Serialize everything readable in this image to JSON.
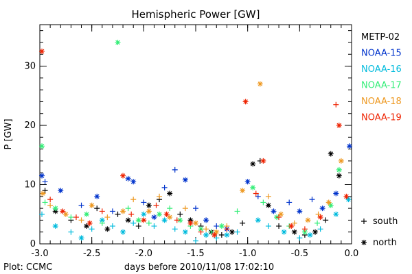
{
  "chart_data": {
    "type": "scatter",
    "title": "Hemispheric Power [GW]",
    "xlabel": "days before 2010/11/08 17:02:10",
    "ylabel": "P [GW]",
    "xlim": [
      -3.0,
      0.0
    ],
    "ylim": [
      0,
      37
    ],
    "x_ticks": [
      "-3.0",
      "-2.5",
      "-2.0",
      "-1.5",
      "-1.0",
      "-0.5",
      "0.0"
    ],
    "y_ticks": [
      "0",
      "10",
      "20",
      "30"
    ],
    "grid": false,
    "legend_position": "right",
    "footer": "Plot: CCMC",
    "marker_legend": [
      {
        "symbol": "+",
        "label": "south"
      },
      {
        "symbol": "*",
        "label": "north"
      }
    ],
    "series": [
      {
        "name": "METP-02",
        "color": "#000000",
        "points": [
          {
            "x": -2.95,
            "y": 9.0,
            "m": "+"
          },
          {
            "x": -2.85,
            "y": 5.5,
            "m": "*"
          },
          {
            "x": -2.7,
            "y": 4.0,
            "m": "+"
          },
          {
            "x": -2.55,
            "y": 3.0,
            "m": "*"
          },
          {
            "x": -2.45,
            "y": 6.0,
            "m": "+"
          },
          {
            "x": -2.35,
            "y": 2.5,
            "m": "*"
          },
          {
            "x": -2.25,
            "y": 5.0,
            "m": "+"
          },
          {
            "x": -2.15,
            "y": 4.0,
            "m": "*"
          },
          {
            "x": -2.05,
            "y": 3.0,
            "m": "+"
          },
          {
            "x": -1.95,
            "y": 6.5,
            "m": "*"
          },
          {
            "x": -1.85,
            "y": 7.5,
            "m": "+"
          },
          {
            "x": -1.75,
            "y": 8.5,
            "m": "*"
          },
          {
            "x": -1.65,
            "y": 5.0,
            "m": "+"
          },
          {
            "x": -1.55,
            "y": 4.0,
            "m": "*"
          },
          {
            "x": -1.45,
            "y": 3.0,
            "m": "+"
          },
          {
            "x": -1.35,
            "y": 2.0,
            "m": "*"
          },
          {
            "x": -1.25,
            "y": 1.5,
            "m": "+"
          },
          {
            "x": -1.15,
            "y": 2.0,
            "m": "*"
          },
          {
            "x": -1.05,
            "y": 3.5,
            "m": "+"
          },
          {
            "x": -0.95,
            "y": 13.5,
            "m": "*"
          },
          {
            "x": -0.88,
            "y": 14.0,
            "m": "+"
          },
          {
            "x": -0.8,
            "y": 6.5,
            "m": "*"
          },
          {
            "x": -0.7,
            "y": 3.0,
            "m": "+"
          },
          {
            "x": -0.55,
            "y": 2.0,
            "m": "*"
          },
          {
            "x": -0.45,
            "y": 1.5,
            "m": "+"
          },
          {
            "x": -0.35,
            "y": 2.0,
            "m": "*"
          },
          {
            "x": -0.25,
            "y": 4.0,
            "m": "+"
          },
          {
            "x": -0.2,
            "y": 15.2,
            "m": "*"
          },
          {
            "x": -0.12,
            "y": 11.5,
            "m": "*"
          }
        ]
      },
      {
        "name": "NOAA-15",
        "color": "#0033cc",
        "points": [
          {
            "x": -2.98,
            "y": 11.5,
            "m": "*"
          },
          {
            "x": -2.95,
            "y": 10.5,
            "m": "+"
          },
          {
            "x": -2.8,
            "y": 9.0,
            "m": "*"
          },
          {
            "x": -2.6,
            "y": 6.5,
            "m": "+"
          },
          {
            "x": -2.45,
            "y": 8.0,
            "m": "*"
          },
          {
            "x": -2.3,
            "y": 5.5,
            "m": "+"
          },
          {
            "x": -2.15,
            "y": 11.0,
            "m": "*"
          },
          {
            "x": -2.1,
            "y": 10.5,
            "m": "*"
          },
          {
            "x": -2.0,
            "y": 7.0,
            "m": "+"
          },
          {
            "x": -1.9,
            "y": 4.5,
            "m": "*"
          },
          {
            "x": -1.8,
            "y": 9.5,
            "m": "+"
          },
          {
            "x": -1.7,
            "y": 12.5,
            "m": "+"
          },
          {
            "x": -1.6,
            "y": 10.8,
            "m": "*"
          },
          {
            "x": -1.5,
            "y": 6.0,
            "m": "+"
          },
          {
            "x": -1.4,
            "y": 4.0,
            "m": "*"
          },
          {
            "x": -1.3,
            "y": 3.0,
            "m": "+"
          },
          {
            "x": -1.2,
            "y": 2.5,
            "m": "*"
          },
          {
            "x": -1.0,
            "y": 10.5,
            "m": "*"
          },
          {
            "x": -0.9,
            "y": 8.0,
            "m": "+"
          },
          {
            "x": -0.75,
            "y": 5.5,
            "m": "*"
          },
          {
            "x": -0.6,
            "y": 7.0,
            "m": "+"
          },
          {
            "x": -0.5,
            "y": 5.5,
            "m": "*"
          },
          {
            "x": -0.38,
            "y": 7.5,
            "m": "+"
          },
          {
            "x": -0.28,
            "y": 6.0,
            "m": "*"
          },
          {
            "x": -0.15,
            "y": 8.5,
            "m": "*"
          },
          {
            "x": -0.02,
            "y": 16.5,
            "m": "*"
          }
        ]
      },
      {
        "name": "NOAA-16",
        "color": "#00bbdd",
        "points": [
          {
            "x": -2.98,
            "y": 5.0,
            "m": "+"
          },
          {
            "x": -2.85,
            "y": 3.0,
            "m": "*"
          },
          {
            "x": -2.7,
            "y": 2.0,
            "m": "+"
          },
          {
            "x": -2.6,
            "y": 1.0,
            "m": "*"
          },
          {
            "x": -2.5,
            "y": 2.5,
            "m": "+"
          },
          {
            "x": -2.4,
            "y": 4.0,
            "m": "*"
          },
          {
            "x": -2.3,
            "y": 3.0,
            "m": "+"
          },
          {
            "x": -2.2,
            "y": 2.0,
            "m": "*"
          },
          {
            "x": -2.1,
            "y": 3.5,
            "m": "+"
          },
          {
            "x": -2.0,
            "y": 5.0,
            "m": "*"
          },
          {
            "x": -1.9,
            "y": 3.0,
            "m": "+"
          },
          {
            "x": -1.8,
            "y": 4.0,
            "m": "*"
          },
          {
            "x": -1.7,
            "y": 2.5,
            "m": "+"
          },
          {
            "x": -1.6,
            "y": 2.0,
            "m": "*"
          },
          {
            "x": -1.5,
            "y": 0.5,
            "m": "+"
          },
          {
            "x": -1.4,
            "y": 1.5,
            "m": "*"
          },
          {
            "x": -1.3,
            "y": 1.0,
            "m": "+"
          },
          {
            "x": -1.2,
            "y": 1.5,
            "m": "*"
          },
          {
            "x": -1.1,
            "y": 2.0,
            "m": "+"
          },
          {
            "x": -0.9,
            "y": 4.0,
            "m": "*"
          },
          {
            "x": -0.8,
            "y": 3.0,
            "m": "+"
          },
          {
            "x": -0.65,
            "y": 2.0,
            "m": "*"
          },
          {
            "x": -0.5,
            "y": 1.0,
            "m": "+"
          },
          {
            "x": -0.4,
            "y": 1.5,
            "m": "*"
          },
          {
            "x": -0.3,
            "y": 2.5,
            "m": "+"
          },
          {
            "x": -0.15,
            "y": 5.0,
            "m": "*"
          },
          {
            "x": -0.03,
            "y": 7.5,
            "m": "*"
          }
        ]
      },
      {
        "name": "NOAA-17",
        "color": "#33ee77",
        "points": [
          {
            "x": -2.98,
            "y": 16.5,
            "m": "*"
          },
          {
            "x": -2.95,
            "y": 7.0,
            "m": "+"
          },
          {
            "x": -2.85,
            "y": 6.0,
            "m": "*"
          },
          {
            "x": -2.7,
            "y": 4.5,
            "m": "+"
          },
          {
            "x": -2.55,
            "y": 5.0,
            "m": "*"
          },
          {
            "x": -2.4,
            "y": 3.5,
            "m": "+"
          },
          {
            "x": -2.25,
            "y": 34.0,
            "m": "*"
          },
          {
            "x": -2.15,
            "y": 6.0,
            "m": "+"
          },
          {
            "x": -2.05,
            "y": 4.0,
            "m": "*"
          },
          {
            "x": -1.95,
            "y": 3.5,
            "m": "+"
          },
          {
            "x": -1.85,
            "y": 5.0,
            "m": "*"
          },
          {
            "x": -1.75,
            "y": 6.0,
            "m": "+"
          },
          {
            "x": -1.65,
            "y": 4.0,
            "m": "*"
          },
          {
            "x": -1.55,
            "y": 3.0,
            "m": "+"
          },
          {
            "x": -1.45,
            "y": 2.5,
            "m": "*"
          },
          {
            "x": -1.35,
            "y": 2.0,
            "m": "+"
          },
          {
            "x": -1.25,
            "y": 3.0,
            "m": "*"
          },
          {
            "x": -1.1,
            "y": 5.5,
            "m": "+"
          },
          {
            "x": -0.95,
            "y": 9.5,
            "m": "*"
          },
          {
            "x": -0.85,
            "y": 7.0,
            "m": "+"
          },
          {
            "x": -0.72,
            "y": 4.5,
            "m": "*"
          },
          {
            "x": -0.6,
            "y": 3.0,
            "m": "+"
          },
          {
            "x": -0.45,
            "y": 2.0,
            "m": "*"
          },
          {
            "x": -0.33,
            "y": 3.5,
            "m": "+"
          },
          {
            "x": -0.2,
            "y": 6.5,
            "m": "*"
          },
          {
            "x": -0.12,
            "y": 12.5,
            "m": "*"
          }
        ]
      },
      {
        "name": "NOAA-18",
        "color": "#ee9922",
        "points": [
          {
            "x": -2.97,
            "y": 8.5,
            "m": "*"
          },
          {
            "x": -2.9,
            "y": 6.5,
            "m": "+"
          },
          {
            "x": -2.75,
            "y": 5.0,
            "m": "*"
          },
          {
            "x": -2.6,
            "y": 4.0,
            "m": "+"
          },
          {
            "x": -2.5,
            "y": 6.5,
            "m": "*"
          },
          {
            "x": -2.35,
            "y": 4.5,
            "m": "+"
          },
          {
            "x": -2.2,
            "y": 5.5,
            "m": "*"
          },
          {
            "x": -2.1,
            "y": 7.5,
            "m": "+"
          },
          {
            "x": -1.95,
            "y": 5.5,
            "m": "*"
          },
          {
            "x": -1.85,
            "y": 8.0,
            "m": "+"
          },
          {
            "x": -1.75,
            "y": 4.5,
            "m": "*"
          },
          {
            "x": -1.6,
            "y": 6.0,
            "m": "+"
          },
          {
            "x": -1.5,
            "y": 3.5,
            "m": "*"
          },
          {
            "x": -1.4,
            "y": 2.5,
            "m": "+"
          },
          {
            "x": -1.3,
            "y": 2.0,
            "m": "*"
          },
          {
            "x": -1.2,
            "y": 3.0,
            "m": "+"
          },
          {
            "x": -1.05,
            "y": 9.0,
            "m": "*"
          },
          {
            "x": -0.88,
            "y": 27.0,
            "m": "*"
          },
          {
            "x": -0.8,
            "y": 8.0,
            "m": "+"
          },
          {
            "x": -0.68,
            "y": 5.0,
            "m": "*"
          },
          {
            "x": -0.55,
            "y": 3.5,
            "m": "+"
          },
          {
            "x": -0.42,
            "y": 4.0,
            "m": "*"
          },
          {
            "x": -0.32,
            "y": 5.0,
            "m": "+"
          },
          {
            "x": -0.22,
            "y": 7.0,
            "m": "*"
          },
          {
            "x": -0.1,
            "y": 14.0,
            "m": "*"
          }
        ]
      },
      {
        "name": "NOAA-19",
        "color": "#ee2200",
        "points": [
          {
            "x": -2.98,
            "y": 32.5,
            "m": "*"
          },
          {
            "x": -2.9,
            "y": 7.5,
            "m": "+"
          },
          {
            "x": -2.78,
            "y": 5.5,
            "m": "*"
          },
          {
            "x": -2.65,
            "y": 4.5,
            "m": "+"
          },
          {
            "x": -2.52,
            "y": 3.5,
            "m": "*"
          },
          {
            "x": -2.4,
            "y": 5.5,
            "m": "+"
          },
          {
            "x": -2.2,
            "y": 11.5,
            "m": "*"
          },
          {
            "x": -2.12,
            "y": 5.0,
            "m": "+"
          },
          {
            "x": -2.0,
            "y": 4.0,
            "m": "*"
          },
          {
            "x": -1.88,
            "y": 6.5,
            "m": "+"
          },
          {
            "x": -1.78,
            "y": 5.0,
            "m": "*"
          },
          {
            "x": -1.68,
            "y": 4.0,
            "m": "+"
          },
          {
            "x": -1.55,
            "y": 3.5,
            "m": "*"
          },
          {
            "x": -1.45,
            "y": 2.0,
            "m": "+"
          },
          {
            "x": -1.32,
            "y": 1.5,
            "m": "*"
          },
          {
            "x": -1.2,
            "y": 2.5,
            "m": "+"
          },
          {
            "x": -1.02,
            "y": 24.0,
            "m": "*"
          },
          {
            "x": -0.92,
            "y": 8.5,
            "m": "+"
          },
          {
            "x": -0.85,
            "y": 14.0,
            "m": "*"
          },
          {
            "x": -0.7,
            "y": 4.5,
            "m": "+"
          },
          {
            "x": -0.58,
            "y": 3.0,
            "m": "*"
          },
          {
            "x": -0.45,
            "y": 2.5,
            "m": "+"
          },
          {
            "x": -0.3,
            "y": 4.5,
            "m": "*"
          },
          {
            "x": -0.15,
            "y": 23.5,
            "m": "+"
          },
          {
            "x": -0.12,
            "y": 20.0,
            "m": "*"
          },
          {
            "x": -0.05,
            "y": 8.0,
            "m": "*"
          }
        ]
      }
    ]
  }
}
